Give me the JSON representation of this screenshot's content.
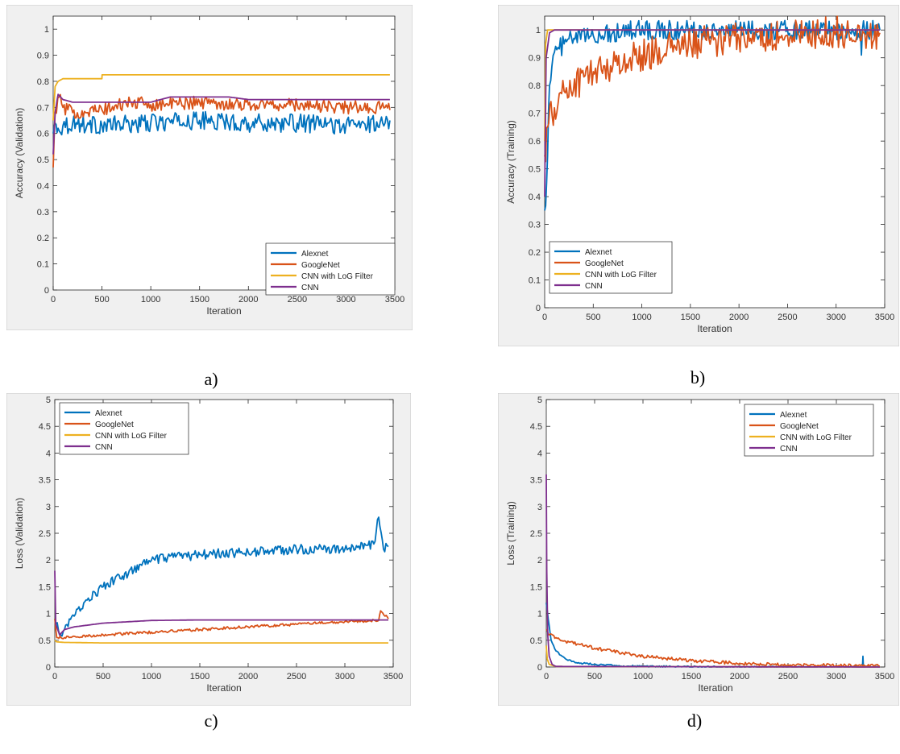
{
  "colors": {
    "Alexnet": "#0072BD",
    "GoogleNet": "#D95319",
    "CNN with LoG Filter": "#EDB120",
    "CNN": "#7E2F8E"
  },
  "captions": [
    "a)",
    "b)",
    "c)",
    "d)"
  ],
  "chart_data": [
    {
      "type": "line",
      "panel": "a",
      "xlabel": "Iteration",
      "ylabel": "Accuracy (Validation)",
      "xlim": [
        0,
        3500
      ],
      "ylim": [
        0,
        1.05
      ],
      "xticks": [
        "0",
        "500",
        "1000",
        "1500",
        "2000",
        "2500",
        "3000",
        "3500"
      ],
      "yticks": [
        "0",
        "0.1",
        "0.2",
        "0.3",
        "0.4",
        "0.5",
        "0.6",
        "0.7",
        "0.8",
        "0.9",
        "1"
      ],
      "legend_position": "bottom-right",
      "legend": [
        "Alexnet",
        "GoogleNet",
        "CNN with LoG Filter",
        "CNN"
      ],
      "series": [
        {
          "name": "Alexnet",
          "x": [
            0,
            20,
            50,
            100,
            200,
            500,
            1000,
            1500,
            2000,
            2500,
            3000,
            3400,
            3450
          ],
          "y": [
            0.6,
            0.64,
            0.62,
            0.63,
            0.64,
            0.63,
            0.64,
            0.65,
            0.64,
            0.64,
            0.63,
            0.64,
            0.65
          ]
        },
        {
          "name": "GoogleNet",
          "x": [
            0,
            20,
            60,
            100,
            200,
            500,
            800,
            1000,
            1500,
            2000,
            2500,
            3000,
            3400,
            3450
          ],
          "y": [
            0.47,
            0.68,
            0.74,
            0.7,
            0.68,
            0.69,
            0.72,
            0.71,
            0.72,
            0.71,
            0.71,
            0.7,
            0.7,
            0.69
          ]
        },
        {
          "name": "CNN with LoG Filter",
          "x": [
            0,
            20,
            50,
            100,
            200,
            499,
            501,
            1000,
            2000,
            3000,
            3450
          ],
          "y": [
            0.65,
            0.78,
            0.8,
            0.81,
            0.81,
            0.81,
            0.825,
            0.825,
            0.825,
            0.825,
            0.825
          ]
        },
        {
          "name": "CNN",
          "x": [
            0,
            20,
            50,
            100,
            200,
            500,
            1000,
            1100,
            1200,
            1800,
            2000,
            3000,
            3450
          ],
          "y": [
            0.52,
            0.68,
            0.75,
            0.73,
            0.72,
            0.72,
            0.72,
            0.73,
            0.74,
            0.74,
            0.73,
            0.73,
            0.73
          ]
        }
      ]
    },
    {
      "type": "line",
      "panel": "b",
      "xlabel": "Iteration",
      "ylabel": "Accuracy (Training)",
      "xlim": [
        0,
        3500
      ],
      "ylim": [
        0,
        1.05
      ],
      "xticks": [
        "0",
        "500",
        "1000",
        "1500",
        "2000",
        "2500",
        "3000",
        "3500"
      ],
      "yticks": [
        "0",
        "0.1",
        "0.2",
        "0.3",
        "0.4",
        "0.5",
        "0.6",
        "0.7",
        "0.8",
        "0.9",
        "1"
      ],
      "legend_position": "bottom-left",
      "legend": [
        "Alexnet",
        "GoogleNet",
        "CNN with LoG Filter",
        "CNN"
      ],
      "series": [
        {
          "name": "Alexnet",
          "x": [
            0,
            20,
            50,
            100,
            200,
            300,
            500,
            700,
            800,
            1500,
            3000,
            3250,
            3260,
            3270,
            3450
          ],
          "y": [
            0.35,
            0.45,
            0.8,
            0.92,
            0.95,
            0.97,
            0.98,
            0.99,
            1.0,
            1.0,
            1.0,
            1.0,
            0.91,
            1.0,
            1.0
          ]
        },
        {
          "name": "GoogleNet",
          "x": [
            0,
            30,
            100,
            200,
            500,
            1000,
            1500,
            2000,
            2500,
            3000,
            3450
          ],
          "y": [
            0.55,
            0.65,
            0.72,
            0.78,
            0.85,
            0.91,
            0.95,
            0.97,
            0.98,
            0.99,
            0.99
          ]
        },
        {
          "name": "CNN with LoG Filter",
          "x": [
            0,
            10,
            30,
            3450
          ],
          "y": [
            0.6,
            0.95,
            1.0,
            1.0
          ]
        },
        {
          "name": "CNN",
          "x": [
            0,
            15,
            50,
            100,
            3450
          ],
          "y": [
            0.4,
            0.9,
            0.99,
            1.0,
            1.0
          ]
        }
      ]
    },
    {
      "type": "line",
      "panel": "c",
      "xlabel": "Iteration",
      "ylabel": "Loss (Validation)",
      "xlim": [
        0,
        3500
      ],
      "ylim": [
        0,
        5
      ],
      "xticks": [
        "0",
        "500",
        "1000",
        "1500",
        "2000",
        "2500",
        "3000",
        "3500"
      ],
      "yticks": [
        "0",
        "0.5",
        "1",
        "1.5",
        "2",
        "2.5",
        "3",
        "3.5",
        "4",
        "4.5",
        "5"
      ],
      "legend_position": "top-left",
      "legend": [
        "Alexnet",
        "GoogleNet",
        "CNN with LoG Filter",
        "CNN"
      ],
      "series": [
        {
          "name": "Alexnet",
          "x": [
            0,
            50,
            100,
            200,
            300,
            500,
            700,
            900,
            1000,
            1500,
            2000,
            2500,
            3000,
            3300,
            3350,
            3400,
            3450
          ],
          "y": [
            0.9,
            0.6,
            0.7,
            0.95,
            1.2,
            1.5,
            1.7,
            1.9,
            2.0,
            2.1,
            2.15,
            2.2,
            2.2,
            2.3,
            2.8,
            2.2,
            2.25
          ]
        },
        {
          "name": "GoogleNet",
          "x": [
            0,
            20,
            100,
            500,
            1000,
            1500,
            2000,
            2500,
            3000,
            3350,
            3370,
            3450
          ],
          "y": [
            0.9,
            0.55,
            0.55,
            0.6,
            0.65,
            0.7,
            0.75,
            0.8,
            0.85,
            0.87,
            1.05,
            0.9
          ]
        },
        {
          "name": "CNN with LoG Filter",
          "x": [
            0,
            20,
            100,
            500,
            1000,
            3450
          ],
          "y": [
            0.5,
            0.47,
            0.46,
            0.45,
            0.45,
            0.45
          ]
        },
        {
          "name": "CNN",
          "x": [
            0,
            10,
            50,
            100,
            200,
            500,
            1000,
            1500,
            2000,
            3000,
            3450
          ],
          "y": [
            1.8,
            0.8,
            0.6,
            0.7,
            0.75,
            0.82,
            0.87,
            0.88,
            0.88,
            0.88,
            0.88
          ]
        }
      ]
    },
    {
      "type": "line",
      "panel": "d",
      "xlabel": "Iteration",
      "ylabel": "Loss (Training)",
      "xlim": [
        0,
        3500
      ],
      "ylim": [
        0,
        5
      ],
      "xticks": [
        "0",
        "500",
        "1000",
        "1500",
        "2000",
        "2500",
        "3000",
        "3500"
      ],
      "yticks": [
        "0",
        "0.5",
        "1",
        "1.5",
        "2",
        "2.5",
        "3",
        "3.5",
        "4",
        "4.5",
        "5"
      ],
      "legend_position": "top-right",
      "legend": [
        "Alexnet",
        "GoogleNet",
        "CNN with LoG Filter",
        "CNN"
      ],
      "series": [
        {
          "name": "Alexnet",
          "x": [
            0,
            20,
            50,
            100,
            200,
            300,
            500,
            800,
            1000,
            2000,
            3270,
            3275,
            3280,
            3450
          ],
          "y": [
            1.2,
            0.9,
            0.5,
            0.3,
            0.15,
            0.08,
            0.05,
            0.02,
            0.01,
            0.0,
            0.0,
            0.2,
            0.0,
            0.0
          ]
        },
        {
          "name": "GoogleNet",
          "x": [
            0,
            30,
            100,
            200,
            500,
            1000,
            1500,
            2000,
            2500,
            3000,
            3450
          ],
          "y": [
            0.7,
            0.6,
            0.55,
            0.48,
            0.35,
            0.2,
            0.12,
            0.07,
            0.04,
            0.03,
            0.02
          ]
        },
        {
          "name": "CNN with LoG Filter",
          "x": [
            0,
            10,
            30,
            100,
            3450
          ],
          "y": [
            0.4,
            0.15,
            0.05,
            0.01,
            0.0
          ]
        },
        {
          "name": "CNN",
          "x": [
            0,
            5,
            15,
            30,
            60,
            100,
            3450
          ],
          "y": [
            3.6,
            1.8,
            0.6,
            0.2,
            0.05,
            0.01,
            0.0
          ]
        }
      ]
    }
  ]
}
